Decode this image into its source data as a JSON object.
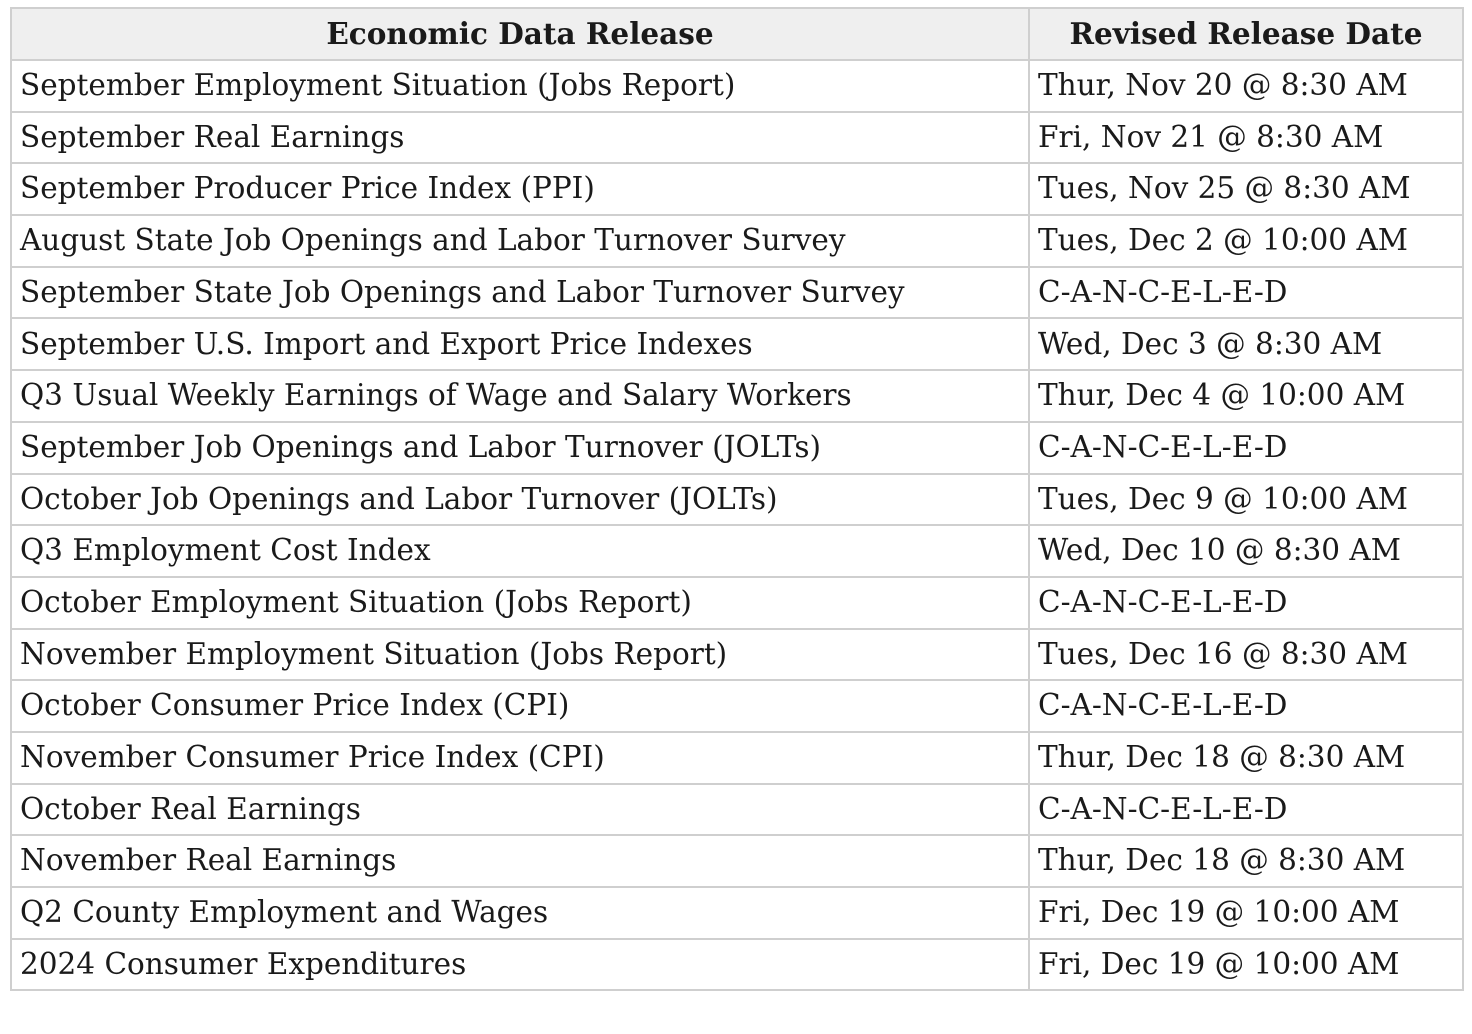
{
  "table": {
    "header": [
      "Economic Data Release",
      "Revised Release Date"
    ],
    "rows": [
      [
        "September Employment Situation (Jobs Report)",
        "Thur, Nov 20 @ 8:30 AM"
      ],
      [
        "September Real Earnings",
        "Fri, Nov 21 @ 8:30 AM"
      ],
      [
        "September Producer Price Index (PPI)",
        "Tues, Nov 25 @ 8:30 AM"
      ],
      [
        "August State Job Openings and Labor Turnover Survey",
        "Tues, Dec 2 @ 10:00 AM"
      ],
      [
        "September State Job Openings and Labor Turnover Survey",
        "C-A-N-C-E-L-E-D"
      ],
      [
        "September U.S. Import and Export Price Indexes",
        "Wed, Dec 3 @ 8:30 AM"
      ],
      [
        "Q3 Usual Weekly Earnings of Wage and Salary Workers",
        "Thur, Dec 4 @ 10:00 AM"
      ],
      [
        "September Job Openings and Labor Turnover (JOLTs)",
        "C-A-N-C-E-L-E-D"
      ],
      [
        "October Job Openings and Labor Turnover (JOLTs)",
        "Tues, Dec 9 @ 10:00 AM"
      ],
      [
        "Q3 Employment Cost Index",
        "Wed, Dec 10 @ 8:30 AM"
      ],
      [
        "October Employment Situation (Jobs Report)",
        "C-A-N-C-E-L-E-D"
      ],
      [
        "November Employment Situation (Jobs Report)",
        "Tues, Dec 16 @ 8:30 AM"
      ],
      [
        "October Consumer Price Index (CPI)",
        "C-A-N-C-E-L-E-D"
      ],
      [
        "November Consumer Price Index (CPI)",
        "Thur, Dec 18 @ 8:30 AM"
      ],
      [
        "October Real Earnings",
        "C-A-N-C-E-L-E-D"
      ],
      [
        "November Real Earnings",
        "Thur, Dec 18 @ 8:30 AM"
      ],
      [
        "Q2 County Employment and Wages",
        "Fri, Dec 19 @ 10:00 AM"
      ],
      [
        "2024 Consumer Expenditures",
        "Fri, Dec 19 @ 10:00 AM"
      ]
    ]
  }
}
